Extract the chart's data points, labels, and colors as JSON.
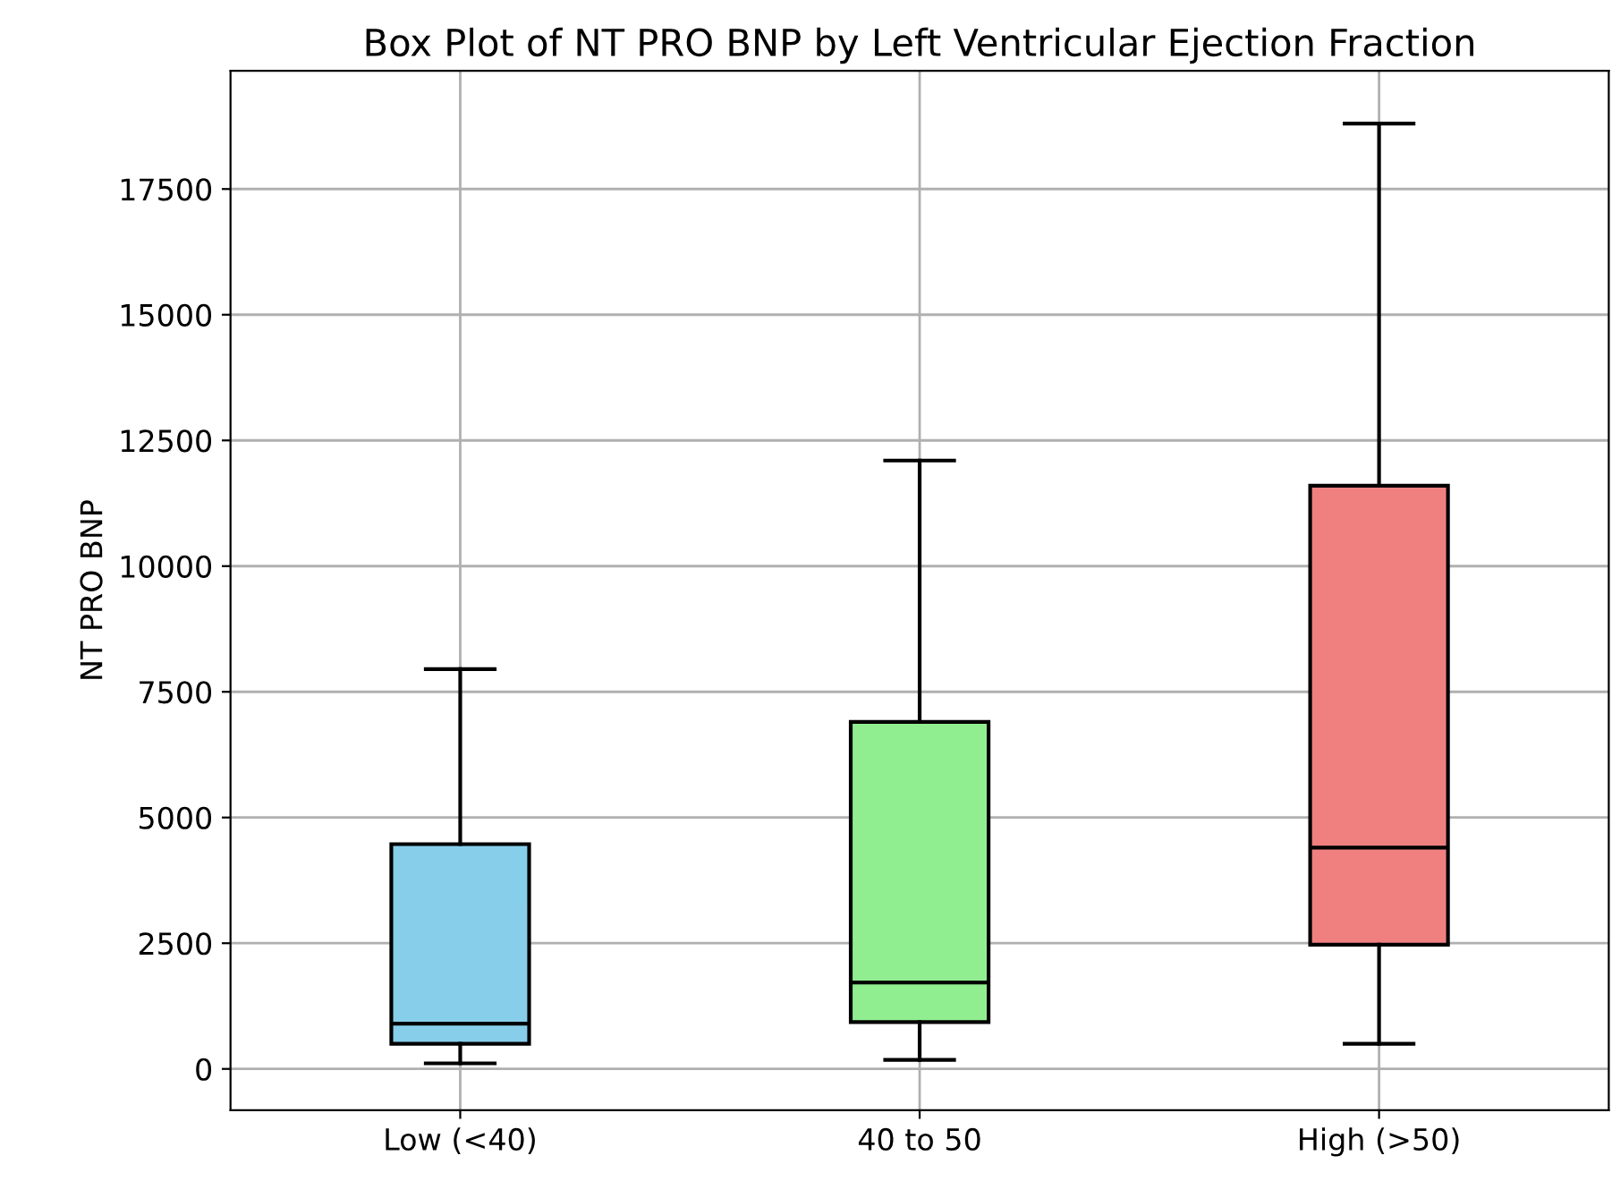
{
  "chart_data": {
    "type": "box",
    "title": "Box Plot of NT PRO BNP by Left Ventricular Ejection Fraction",
    "ylabel": "NT PRO BNP",
    "categories": [
      "Low (<40)",
      "40 to 50",
      "High (>50)"
    ],
    "colors": [
      "#87ceeb",
      "#90ee90",
      "#f08080"
    ],
    "boxes": [
      {
        "low": 110,
        "q1": 500,
        "median": 900,
        "q3": 4470,
        "high": 7950
      },
      {
        "low": 180,
        "q1": 930,
        "median": 1720,
        "q3": 6900,
        "high": 12100
      },
      {
        "low": 500,
        "q1": 2470,
        "median": 4400,
        "q3": 11600,
        "high": 18800
      }
    ],
    "ylim": [
      -820,
      19850
    ],
    "yticks": [
      0,
      2500,
      5000,
      7500,
      10000,
      12500,
      15000,
      17500
    ],
    "grid": true
  }
}
